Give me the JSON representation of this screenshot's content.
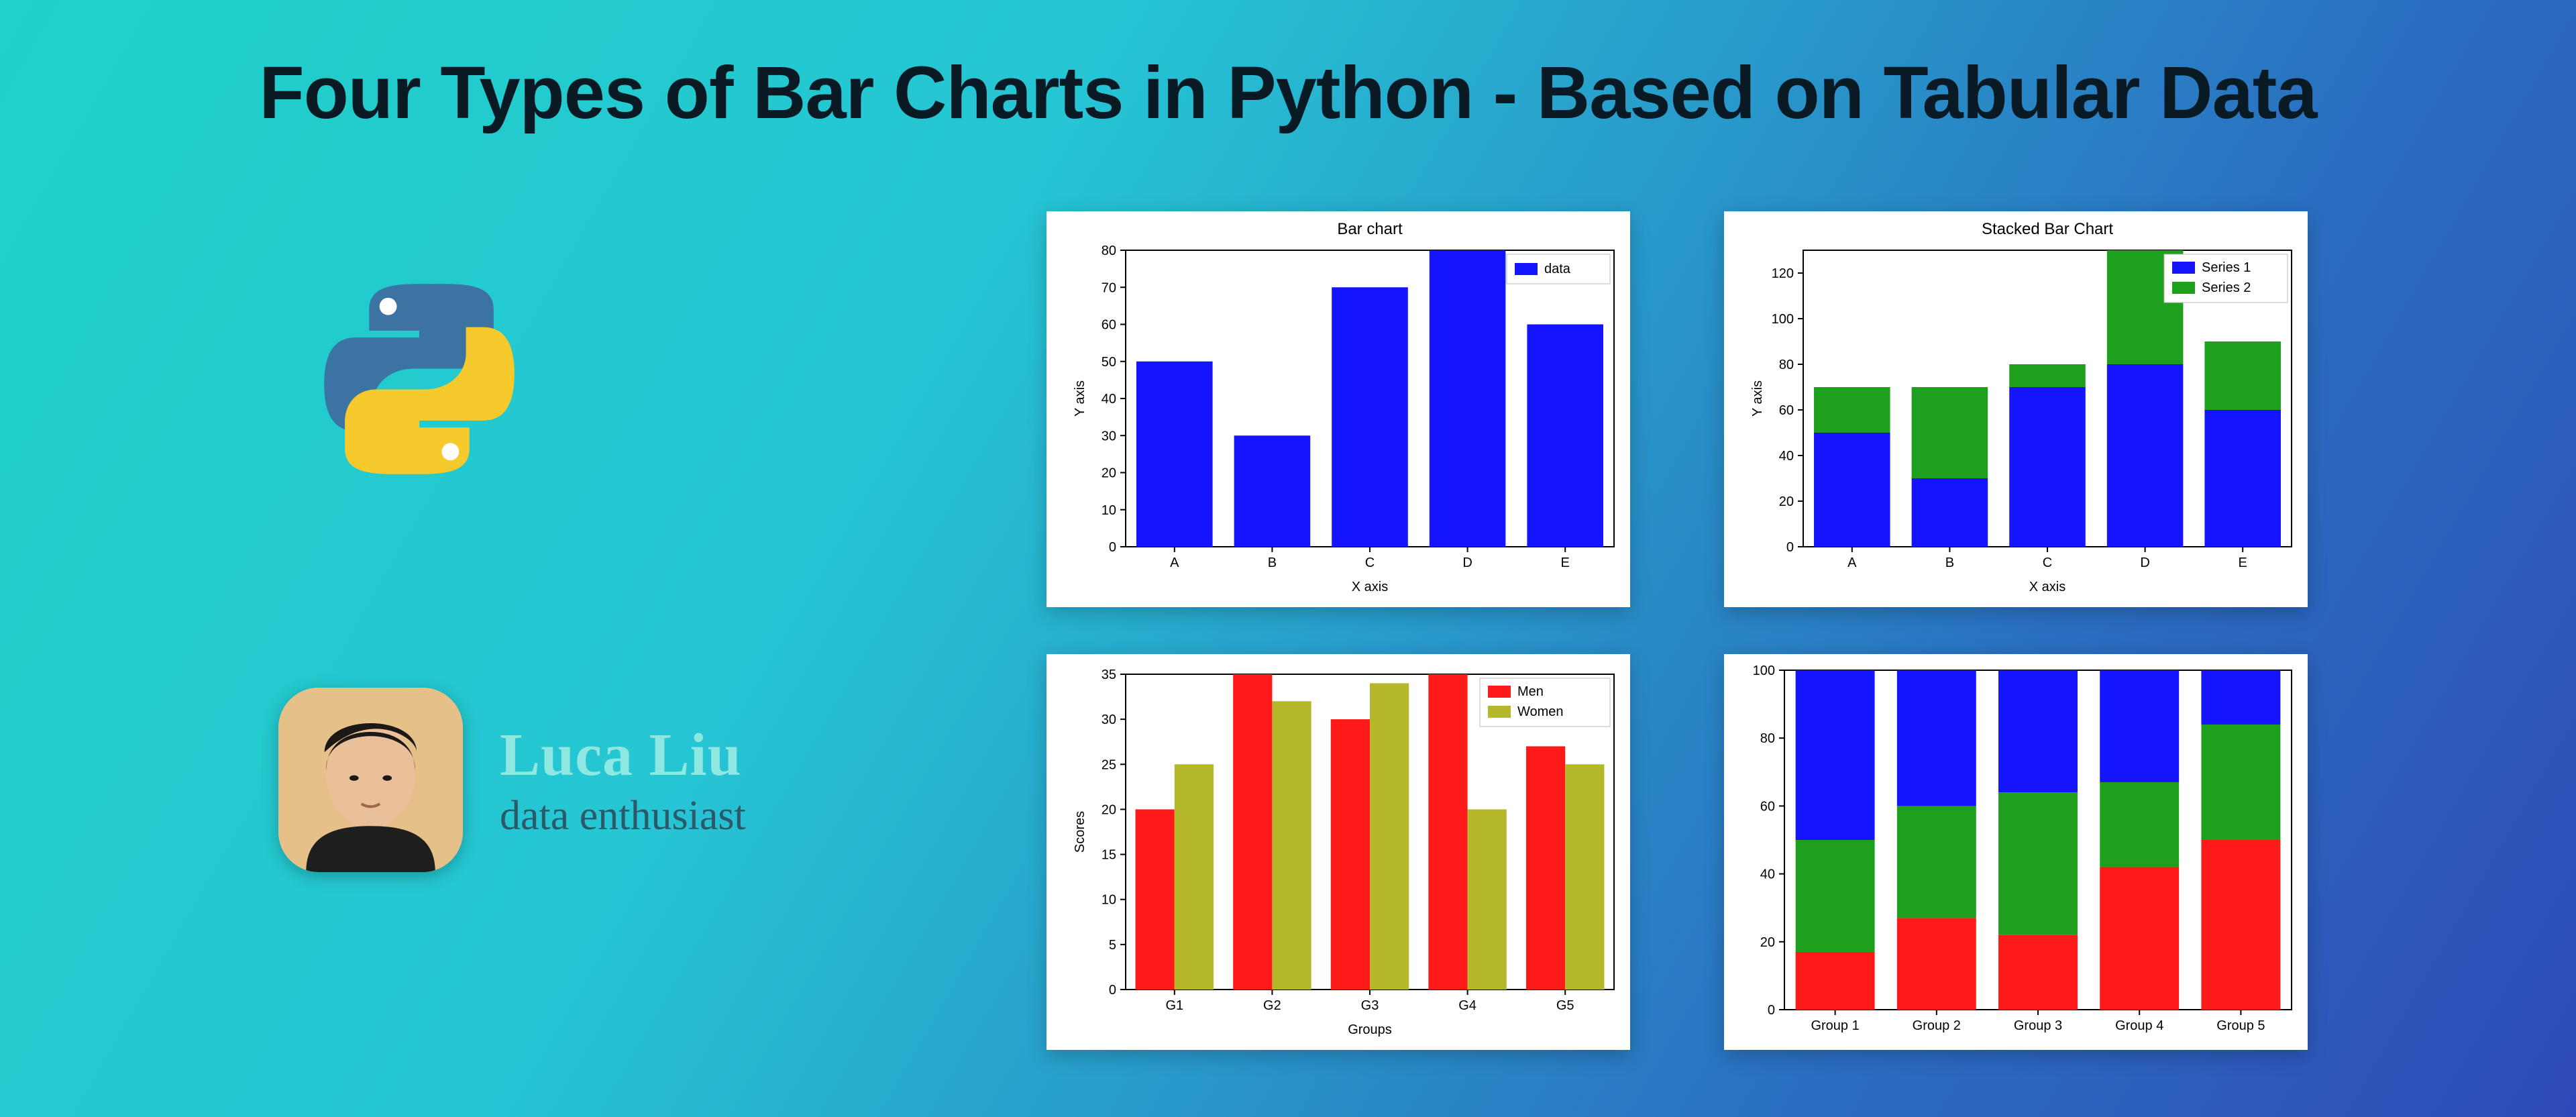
{
  "title": "Four Types of Bar Charts in Python - Based on Tabular Data",
  "author": {
    "name": "Luca Liu",
    "tagline": "data enthusiast"
  },
  "python_logo": {
    "color_top": "#3b74a3",
    "color_bottom": "#f6c92c",
    "eye": "#ffffff"
  },
  "avatar": {
    "bg": "#e5c189",
    "hair": "#1c1815",
    "skin": "#e9c09a",
    "shirt": "#1e1e1e"
  },
  "chart1": {
    "type": "bar",
    "title": "Bar chart",
    "title_fontsize": 24,
    "xlabel": "X axis",
    "ylabel": "Y axis",
    "label_fontsize": 20,
    "tick_fontsize": 20,
    "categories": [
      "A",
      "B",
      "C",
      "D",
      "E"
    ],
    "values": [
      50,
      30,
      70,
      80,
      60
    ],
    "bar_color": "#1414ff",
    "ylim": [
      0,
      80
    ],
    "ytick_step": 10,
    "bar_width": 0.78,
    "background_color": "#ffffff",
    "grid_color": "#000000",
    "legend": {
      "label": "data",
      "rect_color": "#1414ff",
      "position": "upper-right"
    }
  },
  "chart2": {
    "type": "stacked-bar",
    "title": "Stacked Bar Chart",
    "title_fontsize": 24,
    "xlabel": "X axis",
    "ylabel": "Y axis",
    "label_fontsize": 20,
    "tick_fontsize": 20,
    "categories": [
      "A",
      "B",
      "C",
      "D",
      "E"
    ],
    "series1": {
      "label": "Series 1",
      "color": "#1414ff",
      "values": [
        50,
        30,
        70,
        80,
        60
      ]
    },
    "series2": {
      "label": "Series 2",
      "color": "#1ea01e",
      "values": [
        20,
        40,
        10,
        50,
        30
      ]
    },
    "ylim": [
      0,
      130
    ],
    "ytick_step": 20,
    "bar_width": 0.78,
    "background_color": "#ffffff",
    "legend": {
      "position": "upper-right"
    }
  },
  "chart3": {
    "type": "grouped-bar",
    "xlabel": "Groups",
    "ylabel": "Scores",
    "label_fontsize": 20,
    "tick_fontsize": 20,
    "categories": [
      "G1",
      "G2",
      "G3",
      "G4",
      "G5"
    ],
    "series1": {
      "label": "Men",
      "color": "#ff1a1a",
      "values": [
        20,
        35,
        30,
        35,
        27
      ]
    },
    "series2": {
      "label": "Women",
      "color": "#b5b82b",
      "values": [
        25,
        32,
        34,
        20,
        25
      ]
    },
    "ylim": [
      0,
      35
    ],
    "ytick_step": 5,
    "bar_width": 0.4,
    "background_color": "#ffffff",
    "legend": {
      "position": "upper-right"
    }
  },
  "chart4": {
    "type": "percent-stacked-bar",
    "tick_fontsize": 20,
    "categories": [
      "Group 1",
      "Group 2",
      "Group 3",
      "Group 4",
      "Group 5"
    ],
    "series_bottom": {
      "color": "#ff1a1a",
      "values": [
        17,
        27,
        22,
        42,
        50
      ]
    },
    "series_mid": {
      "color": "#1ea01e",
      "values": [
        33,
        33,
        42,
        25,
        34
      ]
    },
    "series_top": {
      "color": "#1414ff",
      "values": [
        50,
        40,
        36,
        33,
        16
      ]
    },
    "ylim": [
      0,
      100
    ],
    "ytick_step": 20,
    "bar_width": 0.78,
    "background_color": "#ffffff"
  }
}
